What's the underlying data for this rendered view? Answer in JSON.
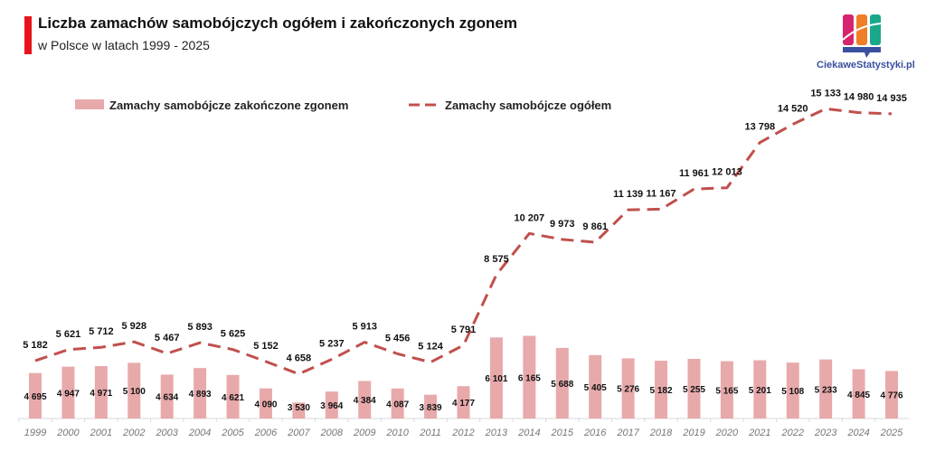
{
  "header": {
    "title": "Liczba zamachów samobójczych ogółem i zakończonych zgonem",
    "subtitle": "w Polsce w latach 1999 - 2025"
  },
  "logo": {
    "text": "CiekaweStatystyki.pl"
  },
  "chart_data": {
    "type": "bar+line",
    "title": "Liczba zamachów samobójczych ogółem i zakończonych zgonem",
    "subtitle": "w Polsce w latach 1999 - 2025",
    "legend_position": "top",
    "grid": false,
    "ylim": [
      2900,
      16000
    ],
    "categories": [
      "1999",
      "2000",
      "2001",
      "2002",
      "2003",
      "2004",
      "2005",
      "2006",
      "2007",
      "2008",
      "2009",
      "2010",
      "2011",
      "2012",
      "2013",
      "2014",
      "2015",
      "2016",
      "2017",
      "2018",
      "2019",
      "2020",
      "2021",
      "2022",
      "2023",
      "2024",
      "2025"
    ],
    "series": [
      {
        "name": "Zamachy samobójcze zakończone zgonem",
        "type": "bar",
        "color": "#e8a9ab",
        "values": [
          4695,
          4947,
          4971,
          5100,
          4634,
          4893,
          4621,
          4090,
          3530,
          3964,
          4384,
          4087,
          3839,
          4177,
          6101,
          6165,
          5688,
          5405,
          5276,
          5182,
          5255,
          5165,
          5201,
          5108,
          5233,
          4845,
          4776
        ]
      },
      {
        "name": "Zamachy samobójcze ogółem",
        "type": "line",
        "style": "dashed",
        "color": "#c0504d",
        "values": [
          5182,
          5621,
          5712,
          5928,
          5467,
          5893,
          5625,
          5152,
          4658,
          5237,
          5913,
          5456,
          5124,
          5791,
          8575,
          10207,
          9973,
          9861,
          11139,
          11167,
          11961,
          12013,
          13798,
          14520,
          15133,
          14980,
          14935
        ]
      }
    ]
  }
}
